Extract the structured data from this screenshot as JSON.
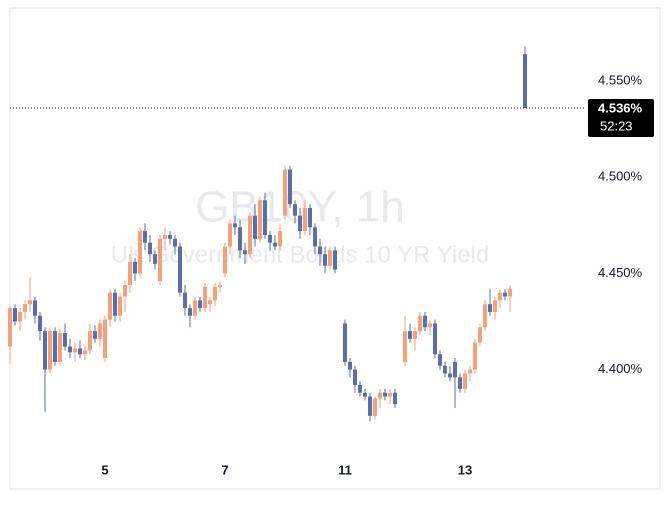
{
  "chart_data": {
    "type": "candlestick",
    "watermark_title": "GB10Y, 1h",
    "watermark_subtitle": "UK Government Bonds 10 YR Yield",
    "up_color": "#f5a07a",
    "down_color": "#5c6ea8",
    "candles": [
      [
        4.412,
        4.433,
        4.403,
        4.432
      ],
      [
        4.432,
        4.434,
        4.423,
        4.425
      ],
      [
        4.425,
        4.432,
        4.42,
        4.43
      ],
      [
        4.43,
        4.436,
        4.426,
        4.434
      ],
      [
        4.434,
        4.448,
        4.43,
        4.436
      ],
      [
        4.436,
        4.438,
        4.424,
        4.428
      ],
      [
        4.428,
        4.43,
        4.415,
        4.42
      ],
      [
        4.42,
        4.422,
        4.378,
        4.4
      ],
      [
        4.4,
        4.422,
        4.398,
        4.42
      ],
      [
        4.42,
        4.422,
        4.402,
        4.404
      ],
      [
        4.404,
        4.421,
        4.402,
        4.419
      ],
      [
        4.419,
        4.424,
        4.41,
        4.412
      ],
      [
        4.412,
        4.416,
        4.406,
        4.409
      ],
      [
        4.409,
        4.414,
        4.404,
        4.411
      ],
      [
        4.411,
        4.415,
        4.406,
        4.408
      ],
      [
        4.408,
        4.413,
        4.405,
        4.41
      ],
      [
        4.41,
        4.424,
        4.408,
        4.42
      ],
      [
        4.42,
        4.423,
        4.414,
        4.416
      ],
      [
        4.416,
        4.426,
        4.412,
        4.424
      ],
      [
        4.406,
        4.428,
        4.404,
        4.426
      ],
      [
        4.426,
        4.442,
        4.422,
        4.44
      ],
      [
        4.44,
        4.442,
        4.425,
        4.428
      ],
      [
        4.428,
        4.44,
        4.425,
        4.438
      ],
      [
        4.438,
        4.446,
        4.43,
        4.444
      ],
      [
        4.444,
        4.46,
        4.44,
        4.456
      ],
      [
        4.456,
        4.458,
        4.446,
        4.45
      ],
      [
        4.45,
        4.474,
        4.448,
        4.472
      ],
      [
        4.472,
        4.476,
        4.462,
        4.466
      ],
      [
        4.466,
        4.47,
        4.456,
        4.46
      ],
      [
        4.46,
        4.462,
        4.452,
        4.455
      ],
      [
        4.446,
        4.47,
        4.444,
        4.468
      ],
      [
        4.468,
        4.474,
        4.462,
        4.47
      ],
      [
        4.47,
        4.472,
        4.465,
        4.468
      ],
      [
        4.468,
        4.47,
        4.46,
        4.464
      ],
      [
        4.464,
        4.466,
        4.438,
        4.44
      ],
      [
        4.44,
        4.444,
        4.428,
        4.432
      ],
      [
        4.432,
        4.434,
        4.422,
        4.428
      ],
      [
        4.428,
        4.438,
        4.426,
        4.436
      ],
      [
        4.436,
        4.438,
        4.43,
        4.432
      ],
      [
        4.432,
        4.445,
        4.43,
        4.443
      ],
      [
        4.434,
        4.438,
        4.43,
        4.436
      ],
      [
        4.436,
        4.445,
        4.433,
        4.443
      ],
      [
        4.443,
        4.446,
        4.44,
        4.444
      ],
      [
        4.45,
        4.466,
        4.448,
        4.464
      ],
      [
        4.464,
        4.478,
        4.46,
        4.476
      ],
      [
        4.476,
        4.48,
        4.47,
        4.474
      ],
      [
        4.474,
        4.478,
        4.458,
        4.462
      ],
      [
        4.462,
        4.466,
        4.455,
        4.46
      ],
      [
        4.46,
        4.482,
        4.458,
        4.48
      ],
      [
        4.48,
        4.486,
        4.464,
        4.468
      ],
      [
        4.468,
        4.49,
        4.466,
        4.488
      ],
      [
        4.488,
        4.492,
        4.468,
        4.47
      ],
      [
        4.47,
        4.472,
        4.462,
        4.466
      ],
      [
        4.466,
        4.47,
        4.462,
        4.464
      ],
      [
        4.464,
        4.476,
        4.462,
        4.472
      ],
      [
        4.48,
        4.506,
        4.478,
        4.504
      ],
      [
        4.504,
        4.506,
        4.484,
        4.486
      ],
      [
        4.486,
        4.488,
        4.476,
        4.48
      ],
      [
        4.48,
        4.484,
        4.468,
        4.472
      ],
      [
        4.472,
        4.488,
        4.47,
        4.484
      ],
      [
        4.484,
        4.486,
        4.47,
        4.474
      ],
      [
        4.474,
        4.476,
        4.46,
        4.464
      ],
      [
        4.464,
        4.468,
        4.454,
        4.46
      ],
      [
        4.46,
        4.464,
        4.45,
        4.454
      ],
      [
        4.454,
        4.464,
        4.452,
        4.462
      ],
      [
        4.462,
        4.464,
        4.45,
        4.452
      ],
      null,
      [
        4.424,
        4.426,
        4.402,
        4.404
      ],
      [
        4.404,
        4.406,
        4.396,
        4.4
      ],
      [
        4.4,
        4.402,
        4.388,
        4.392
      ],
      [
        4.392,
        4.394,
        4.386,
        4.388
      ],
      [
        4.388,
        4.39,
        4.384,
        4.386
      ],
      [
        4.386,
        4.388,
        4.373,
        4.376
      ],
      [
        4.376,
        4.386,
        4.374,
        4.385
      ],
      [
        4.385,
        4.39,
        4.38,
        4.388
      ],
      [
        4.388,
        4.39,
        4.384,
        4.386
      ],
      [
        4.386,
        4.39,
        4.382,
        4.388
      ],
      [
        4.388,
        4.39,
        4.38,
        4.382
      ],
      null,
      [
        4.404,
        4.428,
        4.402,
        4.42
      ],
      [
        4.42,
        4.424,
        4.414,
        4.416
      ],
      [
        4.416,
        4.422,
        4.41,
        4.42
      ],
      [
        4.42,
        4.43,
        4.418,
        4.428
      ],
      [
        4.428,
        4.43,
        4.42,
        4.422
      ],
      [
        4.422,
        4.426,
        4.418,
        4.424
      ],
      [
        4.424,
        4.426,
        4.406,
        4.408
      ],
      [
        4.408,
        4.41,
        4.4,
        4.402
      ],
      [
        4.402,
        4.404,
        4.396,
        4.398
      ],
      [
        4.398,
        4.402,
        4.394,
        4.396
      ],
      [
        4.404,
        4.406,
        4.38,
        4.396
      ],
      [
        4.396,
        4.398,
        4.388,
        4.39
      ],
      [
        4.39,
        4.4,
        4.388,
        4.398
      ],
      [
        4.398,
        4.402,
        4.394,
        4.4
      ],
      [
        4.4,
        4.416,
        4.398,
        4.414
      ],
      [
        4.414,
        4.424,
        4.412,
        4.422
      ],
      [
        4.422,
        4.436,
        4.42,
        4.434
      ],
      [
        4.434,
        4.442,
        4.428,
        4.43
      ],
      [
        4.43,
        4.438,
        4.426,
        4.436
      ],
      [
        4.436,
        4.442,
        4.432,
        4.44
      ],
      [
        4.44,
        4.442,
        4.436,
        4.438
      ],
      [
        4.438,
        4.444,
        4.43,
        4.442
      ],
      null,
      null,
      [
        4.564,
        4.568,
        4.536,
        4.536
      ]
    ],
    "xticks": [
      {
        "value": 19,
        "label": "5"
      },
      {
        "value": 43,
        "label": "7"
      },
      {
        "value": 67,
        "label": "11"
      },
      {
        "value": 91,
        "label": "13"
      }
    ],
    "ylim": [
      4.353,
      4.588
    ],
    "yticks": [
      {
        "value": 4.4,
        "label": "4.400%"
      },
      {
        "value": 4.45,
        "label": "4.450%"
      },
      {
        "value": 4.5,
        "label": "4.500%"
      },
      {
        "value": 4.55,
        "label": "4.550%"
      }
    ],
    "last_price": {
      "value": 4.536,
      "label": "4.536%"
    },
    "countdown": "52:23"
  }
}
